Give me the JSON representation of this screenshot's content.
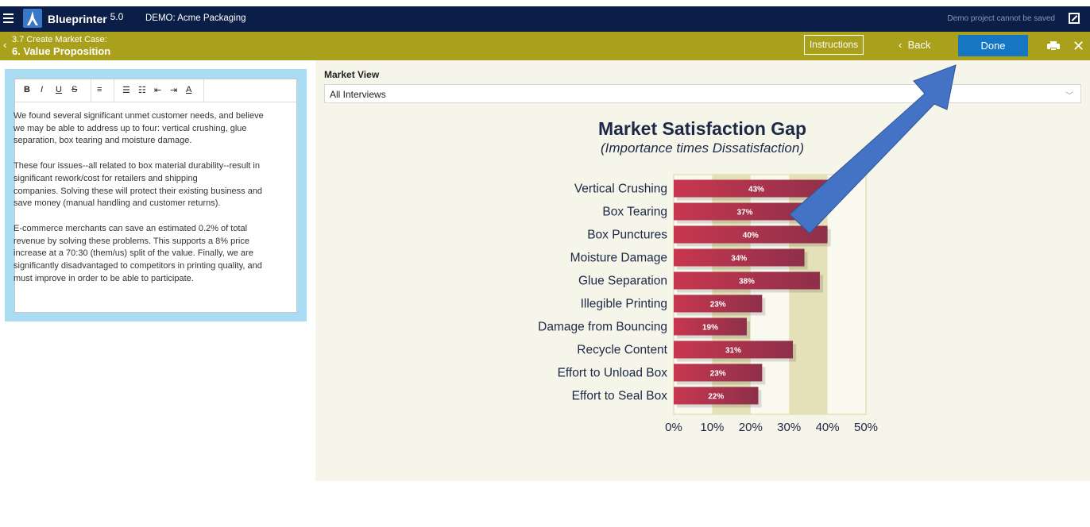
{
  "header": {
    "app_name": "Blueprinter",
    "app_version": "5.0",
    "project": "DEMO: Acme Packaging",
    "demo_note": "Demo project cannot be saved"
  },
  "subheader": {
    "crumb": "3.7 Create Market Case:",
    "title": "6. Value Proposition",
    "instructions_label": "Instructions",
    "back_label": "Back",
    "done_label": "Done"
  },
  "editor": {
    "toolbar": [
      "B",
      "I",
      "U",
      "S",
      "align-left-icon",
      "bullet-list-icon",
      "numbered-list-icon",
      "outdent-icon",
      "indent-icon",
      "text-color-icon"
    ],
    "paragraphs": [
      "We found several significant unmet customer needs, and believe\nwe may be able to address up to four: vertical crushing, glue\nseparation, box tearing and moisture damage.",
      "These four issues--all related to box material durability--result in\nsignificant rework/cost for retailers and shipping\ncompanies. Solving these will protect their existing business and\nsave money (manual handling and customer returns).",
      "E-commerce merchants can save an estimated 0.2% of total\nrevenue by solving these problems. This supports a 8% price\nincrease at a 70:30 (them/us) split of the value. Finally, we are\nsignificantly disadvantaged to competitors in printing quality, and\nmust improve in order to be able to participate."
    ]
  },
  "market_view": {
    "label": "Market View",
    "selected": "All Interviews"
  },
  "chart_data": {
    "type": "bar",
    "orientation": "horizontal",
    "title": "Market Satisfaction Gap",
    "subtitle": "(Importance times Dissatisfaction)",
    "categories": [
      "Vertical Crushing",
      "Box Tearing",
      "Box Punctures",
      "Moisture Damage",
      "Glue Separation",
      "Illegible Printing",
      "Damage from Bouncing",
      "Recycle Content",
      "Effort to Unload Box",
      "Effort to Seal Box"
    ],
    "values": [
      43,
      37,
      40,
      34,
      38,
      23,
      19,
      31,
      23,
      22
    ],
    "data_labels": [
      "43%",
      "37%",
      "40%",
      "34%",
      "38%",
      "23%",
      "19%",
      "31%",
      "23%",
      "22%"
    ],
    "xticks": [
      "0%",
      "10%",
      "20%",
      "30%",
      "40%",
      "50%"
    ],
    "xlim": [
      0,
      50
    ],
    "highlight_bands": [
      [
        10,
        20
      ],
      [
        30,
        40
      ]
    ],
    "bar_color": "#c8374f",
    "band_color": "#e4e0b8"
  },
  "colors": {
    "topbar": "#0b1e47",
    "subbar": "#a9a01b",
    "done_button": "#1577c4",
    "callout_arrow": "#4472c4"
  }
}
